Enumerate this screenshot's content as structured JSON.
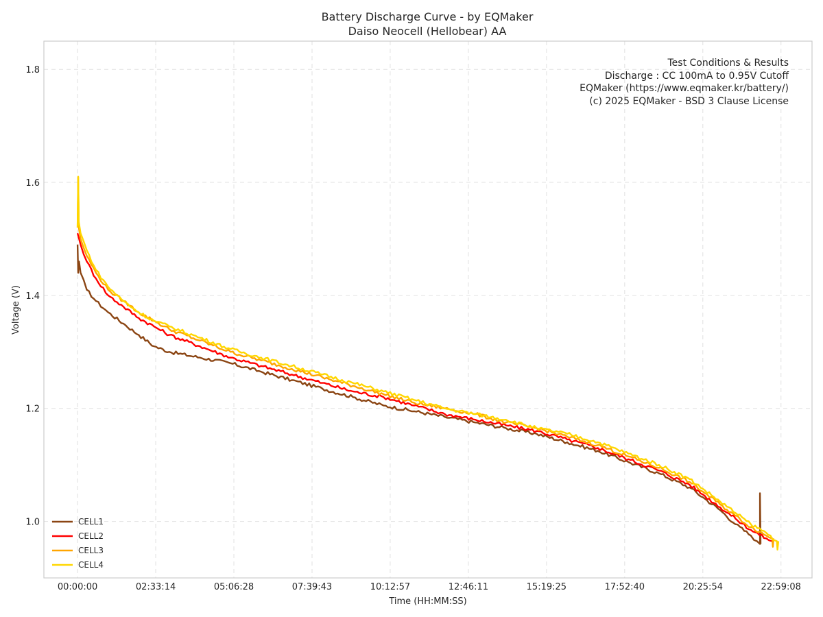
{
  "chart_data": {
    "type": "line",
    "title": "Battery Discharge Curve - by EQMaker",
    "subtitle": "Daiso Neocell (Hellobear) AA",
    "xlabel": "Time (HH:MM:SS)",
    "ylabel": "Voltage (V)",
    "xlim": [
      -1.1,
      24.0
    ],
    "ylim": [
      0.9,
      1.85
    ],
    "x_unit": "hours",
    "x_ticks": [
      {
        "value": 0.0,
        "label": "00:00:00"
      },
      {
        "value": 2.554,
        "label": "02:33:14"
      },
      {
        "value": 5.108,
        "label": "05:06:28"
      },
      {
        "value": 7.662,
        "label": "07:39:43"
      },
      {
        "value": 10.216,
        "label": "10:12:57"
      },
      {
        "value": 12.77,
        "label": "12:46:11"
      },
      {
        "value": 15.324,
        "label": "15:19:25"
      },
      {
        "value": 17.878,
        "label": "17:52:40"
      },
      {
        "value": 20.432,
        "label": "20:25:54"
      },
      {
        "value": 22.986,
        "label": "22:59:08"
      }
    ],
    "y_ticks": [
      {
        "value": 1.0,
        "label": "1.0"
      },
      {
        "value": 1.2,
        "label": "1.2"
      },
      {
        "value": 1.4,
        "label": "1.4"
      },
      {
        "value": 1.6,
        "label": "1.6"
      },
      {
        "value": 1.8,
        "label": "1.8"
      }
    ],
    "grid": true,
    "legend_position": "bottom-left",
    "annotation": {
      "position": "top-right",
      "lines": [
        "Test Conditions & Results",
        "Discharge : CC 100mA to 0.95V Cutoff",
        "EQMaker (https://www.eqmaker.kr/battery/)",
        "(c) 2025 EQMaker - BSD 3 Clause License"
      ]
    },
    "series": [
      {
        "name": "CELL1",
        "color": "#8B4513",
        "x": [
          0,
          0.02,
          0.05,
          0.1,
          0.3,
          0.6,
          1.0,
          1.5,
          2.0,
          2.5,
          3.0,
          4.0,
          5.0,
          6.0,
          7.0,
          8.0,
          9.0,
          10.0,
          11.0,
          12.0,
          13.0,
          14.0,
          15.0,
          16.0,
          17.0,
          18.0,
          19.0,
          20.0,
          20.5,
          21.0,
          21.5,
          22.0,
          22.2,
          22.3,
          22.3,
          22.32
        ],
        "values": [
          1.49,
          1.44,
          1.46,
          1.44,
          1.41,
          1.39,
          1.37,
          1.35,
          1.33,
          1.31,
          1.3,
          1.29,
          1.28,
          1.265,
          1.25,
          1.235,
          1.22,
          1.205,
          1.195,
          1.185,
          1.175,
          1.165,
          1.155,
          1.14,
          1.125,
          1.105,
          1.085,
          1.06,
          1.04,
          1.02,
          0.995,
          0.975,
          0.965,
          0.96,
          1.05,
          0.96
        ]
      },
      {
        "name": "CELL2",
        "color": "#FF0000",
        "x": [
          0,
          0.1,
          0.3,
          0.6,
          1.0,
          1.5,
          2.0,
          2.5,
          3.0,
          4.0,
          5.0,
          6.0,
          7.0,
          8.0,
          9.0,
          10.0,
          11.0,
          12.0,
          13.0,
          14.0,
          15.0,
          16.0,
          17.0,
          18.0,
          19.0,
          20.0,
          20.5,
          21.0,
          21.5,
          22.0,
          22.5,
          22.7
        ],
        "values": [
          1.51,
          1.49,
          1.46,
          1.43,
          1.4,
          1.38,
          1.36,
          1.345,
          1.33,
          1.31,
          1.29,
          1.275,
          1.26,
          1.245,
          1.23,
          1.22,
          1.205,
          1.19,
          1.18,
          1.17,
          1.16,
          1.145,
          1.13,
          1.11,
          1.09,
          1.065,
          1.045,
          1.025,
          1.005,
          0.985,
          0.97,
          0.965
        ]
      },
      {
        "name": "CELL3",
        "color": "#FFA500",
        "x": [
          0,
          0.02,
          0.04,
          0.1,
          0.3,
          0.6,
          1.0,
          1.5,
          2.0,
          2.5,
          3.0,
          4.0,
          5.0,
          6.0,
          7.0,
          8.0,
          9.0,
          10.0,
          11.0,
          12.0,
          13.0,
          14.0,
          15.0,
          16.0,
          17.0,
          18.0,
          19.0,
          20.0,
          20.5,
          21.0,
          21.5,
          22.0,
          22.5,
          22.7,
          22.72,
          22.74
        ],
        "values": [
          1.52,
          1.61,
          1.52,
          1.5,
          1.47,
          1.44,
          1.41,
          1.39,
          1.37,
          1.355,
          1.34,
          1.32,
          1.3,
          1.285,
          1.27,
          1.255,
          1.24,
          1.225,
          1.21,
          1.2,
          1.19,
          1.175,
          1.165,
          1.15,
          1.135,
          1.115,
          1.095,
          1.07,
          1.05,
          1.03,
          1.01,
          0.99,
          0.975,
          0.97,
          0.955,
          0.97
        ]
      },
      {
        "name": "CELL4",
        "color": "#FFD700",
        "x": [
          0,
          0.02,
          0.04,
          0.1,
          0.3,
          0.6,
          1.0,
          1.5,
          2.0,
          2.5,
          3.0,
          4.0,
          5.0,
          6.0,
          7.0,
          8.0,
          9.0,
          10.0,
          11.0,
          12.0,
          13.0,
          14.0,
          15.0,
          16.0,
          17.0,
          18.0,
          19.0,
          20.0,
          20.5,
          21.0,
          21.5,
          22.0,
          22.5,
          22.85,
          22.87,
          22.9
        ],
        "values": [
          1.52,
          1.61,
          1.53,
          1.51,
          1.48,
          1.445,
          1.415,
          1.39,
          1.37,
          1.355,
          1.345,
          1.325,
          1.305,
          1.29,
          1.275,
          1.26,
          1.245,
          1.23,
          1.215,
          1.2,
          1.19,
          1.18,
          1.165,
          1.155,
          1.14,
          1.12,
          1.1,
          1.075,
          1.055,
          1.035,
          1.015,
          0.995,
          0.98,
          0.965,
          0.95,
          0.965
        ]
      }
    ]
  }
}
